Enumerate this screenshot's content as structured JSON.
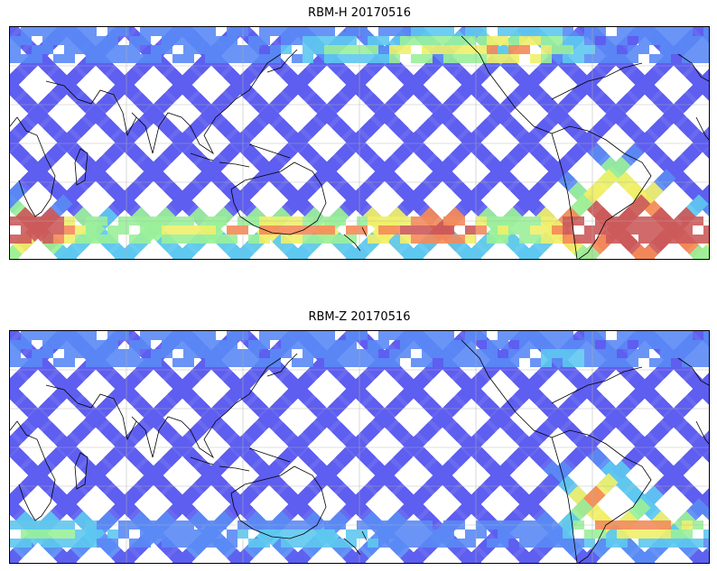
{
  "panels": [
    {
      "title": "RBM-H 20170516",
      "colormap": "jet",
      "hotspots": [
        {
          "region": "south-atlantic",
          "level": "high"
        },
        {
          "region": "southern-ocean-band",
          "level": "medium"
        },
        {
          "region": "north-band",
          "level": "medium"
        }
      ]
    },
    {
      "title": "RBM-Z 20170516",
      "colormap": "jet",
      "hotspots": [
        {
          "region": "south-atlantic",
          "level": "medium"
        },
        {
          "region": "southern-ocean-band",
          "level": "low-medium"
        }
      ]
    }
  ],
  "colors": {
    "track_low": "#5e5ef0",
    "track_mid": "#5ec8f0",
    "track_high_a": "#f0f06a",
    "track_high_b": "#f58a5a",
    "track_max": "#cc5a5a",
    "coast": "#000000",
    "grid": "#b0b0b0"
  }
}
